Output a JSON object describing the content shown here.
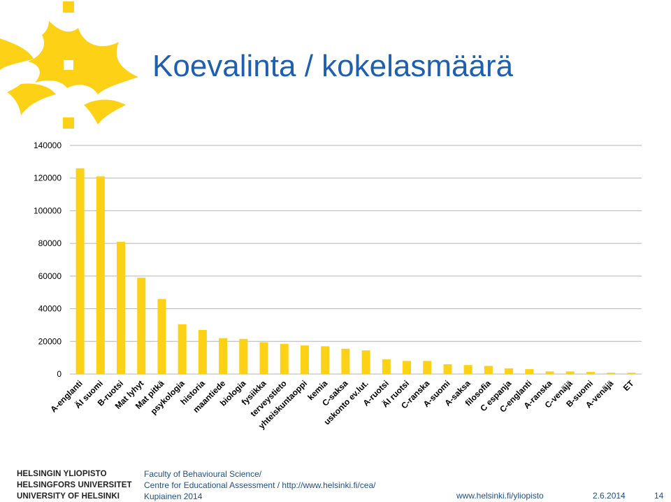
{
  "slide": {
    "title": "Koevalinta / kokelasmäärä"
  },
  "footer": {
    "university_names": [
      "HELSINGIN YLIOPISTO",
      "HELSINGFORS UNIVERSITET",
      "UNIVERSITY OF HELSINKI"
    ],
    "org_line1": "Faculty of Behavioural Science/",
    "org_line2": "Centre for Educational Assessment /  http://www.helsinki.fi/cea/",
    "org_line3": "Kupiainen 2014",
    "url": "www.helsinki.fi/yliopisto",
    "date": "2.6.2014",
    "page": "14"
  },
  "colors": {
    "bar": "#fcd116",
    "title": "#1f5fae",
    "flame": "#fcd116"
  },
  "chart_data": {
    "type": "bar",
    "title": "",
    "xlabel": "",
    "ylabel": "",
    "ylim": [
      0,
      140000
    ],
    "yticks": [
      0,
      20000,
      40000,
      60000,
      80000,
      100000,
      120000,
      140000
    ],
    "grid": true,
    "categories": [
      "A-englanti",
      "ÄI suomi",
      "B-ruotsi",
      "Mat lyhyt",
      "Mat pitkä",
      "psykologia",
      "historia",
      "maantiede",
      "biologia",
      "fysiikka",
      "terveystieto",
      "yhteiskuntaoppi",
      "kemia",
      "C-saksa",
      "uskonto ev.lut.",
      "A-ruotsi",
      "ÄI ruotsi",
      "C-ranska",
      "A-suomi",
      "A-saksa",
      "filosofia",
      "C espanja",
      "C-englanti",
      "A-ranska",
      "C-venäjä",
      "B-suomi",
      "A-venäjä",
      "ET"
    ],
    "values": [
      126000,
      121000,
      81000,
      59000,
      46000,
      30500,
      27000,
      22000,
      21500,
      19500,
      18500,
      17500,
      17000,
      15500,
      14500,
      9000,
      8000,
      8000,
      6000,
      5500,
      5000,
      3500,
      3000,
      1600,
      1600,
      1300,
      800,
      800
    ]
  }
}
